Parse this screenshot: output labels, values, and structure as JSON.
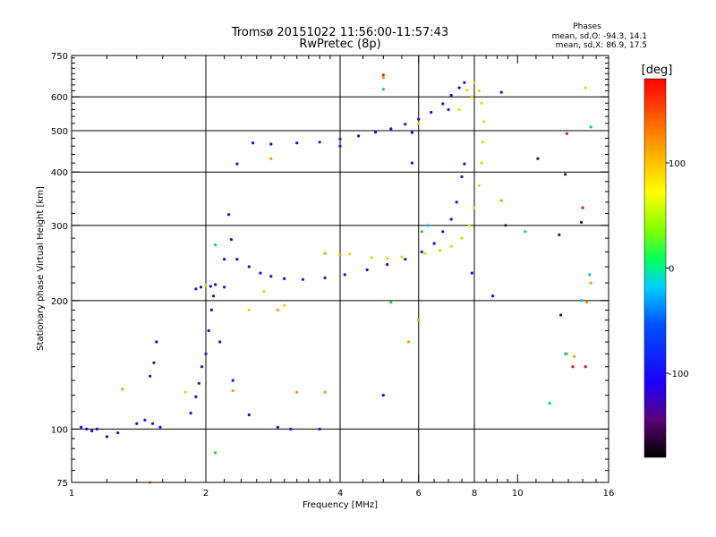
{
  "chart_data": {
    "type": "scatter",
    "title": "Tromsø 20151022 11:56:00-11:57:43",
    "subtitle": "RwPretec (8p)",
    "xlabel": "Frequency [MHz]",
    "ylabel": "Stationary phase Virtual Height [km]",
    "x_scale": "log",
    "y_scale": "log",
    "xlim": [
      1,
      16
    ],
    "ylim": [
      75,
      750
    ],
    "x_ticks": [
      1,
      2,
      4,
      6,
      8,
      10,
      16
    ],
    "y_ticks": [
      75,
      100,
      200,
      300,
      400,
      500,
      600,
      750
    ],
    "grid_x": [
      2,
      4,
      6,
      8
    ],
    "grid_y": [
      100,
      200,
      300,
      400,
      500,
      600
    ],
    "grid": true,
    "phase_stats": {
      "title": "Phases",
      "line_o": "mean, sd,O:  -94.3, 14.1",
      "line_x": "mean, sd,X:  86.9, 17.5"
    },
    "colorbar": {
      "label": "[deg]",
      "range": [
        -180,
        180
      ],
      "ticks": [
        100,
        0,
        -100
      ]
    },
    "series": [
      {
        "color": "#1010e0",
        "points": [
          [
            1.05,
            101
          ],
          [
            1.08,
            100
          ],
          [
            1.11,
            99
          ],
          [
            1.14,
            100
          ],
          [
            1.2,
            96
          ],
          [
            1.27,
            98
          ],
          [
            1.4,
            103
          ],
          [
            1.46,
            105
          ],
          [
            1.52,
            103
          ],
          [
            1.58,
            101
          ],
          [
            1.5,
            133
          ],
          [
            1.53,
            143
          ],
          [
            1.55,
            160
          ],
          [
            1.85,
            109
          ],
          [
            1.9,
            119
          ],
          [
            1.93,
            128
          ],
          [
            1.96,
            140
          ],
          [
            2.0,
            150
          ],
          [
            2.03,
            170
          ],
          [
            2.06,
            190
          ],
          [
            2.08,
            205
          ],
          [
            2.1,
            218
          ],
          [
            2.2,
            215
          ],
          [
            2.15,
            160
          ],
          [
            2.3,
            130
          ],
          [
            2.5,
            108
          ],
          [
            2.9,
            101
          ],
          [
            3.1,
            100
          ],
          [
            3.6,
            100
          ],
          [
            1.9,
            213
          ],
          [
            1.95,
            215
          ],
          [
            2.05,
            216
          ],
          [
            2.2,
            250
          ],
          [
            2.25,
            318
          ],
          [
            2.28,
            278
          ],
          [
            2.35,
            250
          ],
          [
            2.5,
            240
          ],
          [
            2.65,
            232
          ],
          [
            2.8,
            228
          ],
          [
            3.0,
            225
          ],
          [
            3.3,
            224
          ],
          [
            3.7,
            226
          ],
          [
            4.1,
            230
          ],
          [
            4.6,
            236
          ],
          [
            5.1,
            243
          ],
          [
            5.6,
            250
          ],
          [
            6.1,
            260
          ],
          [
            6.5,
            272
          ],
          [
            6.8,
            290
          ],
          [
            7.1,
            310
          ],
          [
            7.3,
            340
          ],
          [
            7.5,
            390
          ],
          [
            7.6,
            418
          ],
          [
            2.35,
            418
          ],
          [
            2.55,
            468
          ],
          [
            2.8,
            465
          ],
          [
            3.2,
            468
          ],
          [
            3.6,
            470
          ],
          [
            4.0,
            478
          ],
          [
            4.4,
            486
          ],
          [
            4.8,
            496
          ],
          [
            5.2,
            505
          ],
          [
            5.6,
            518
          ],
          [
            6.0,
            532
          ],
          [
            6.4,
            552
          ],
          [
            6.8,
            578
          ],
          [
            7.1,
            605
          ],
          [
            7.4,
            630
          ],
          [
            7.6,
            648
          ],
          [
            7.0,
            560
          ],
          [
            5.8,
            495
          ],
          [
            4.0,
            460
          ],
          [
            5.0,
            120
          ],
          [
            5.8,
            420
          ],
          [
            7.9,
            232
          ],
          [
            8.8,
            205
          ],
          [
            9.2,
            615
          ]
        ]
      },
      {
        "color": "#dddd00",
        "points": [
          [
            6.2,
            258
          ],
          [
            6.7,
            262
          ],
          [
            7.1,
            268
          ],
          [
            7.5,
            280
          ],
          [
            7.8,
            300
          ],
          [
            8.0,
            330
          ],
          [
            8.2,
            372
          ],
          [
            8.3,
            420
          ],
          [
            8.35,
            470
          ],
          [
            8.4,
            525
          ],
          [
            8.3,
            580
          ],
          [
            8.2,
            620
          ],
          [
            8.0,
            648
          ],
          [
            7.7,
            622
          ],
          [
            7.4,
            560
          ],
          [
            7.9,
            600
          ],
          [
            4.7,
            252
          ],
          [
            5.1,
            251
          ],
          [
            5.5,
            253
          ],
          [
            4.2,
            257
          ],
          [
            2.0,
            217
          ],
          [
            2.5,
            190
          ],
          [
            3.0,
            195
          ],
          [
            2.7,
            210
          ],
          [
            1.8,
            122
          ],
          [
            14.2,
            630
          ],
          [
            6.0,
            520
          ]
        ]
      },
      {
        "color": "#ff9900",
        "points": [
          [
            3.7,
            258
          ],
          [
            4.0,
            256
          ],
          [
            5.7,
            160
          ],
          [
            6.0,
            180
          ],
          [
            2.8,
            430
          ],
          [
            1.5,
            75
          ],
          [
            2.9,
            190
          ],
          [
            3.2,
            122
          ],
          [
            3.7,
            122
          ],
          [
            12.9,
            150
          ],
          [
            14.6,
            220
          ],
          [
            14.3,
            198
          ],
          [
            9.2,
            343
          ],
          [
            5.0,
            665
          ],
          [
            13.4,
            148
          ],
          [
            2.3,
            123
          ],
          [
            1.3,
            124
          ]
        ]
      },
      {
        "color": "#ee1111",
        "points": [
          [
            5.0,
            675
          ],
          [
            14.0,
            330
          ],
          [
            13.3,
            140
          ],
          [
            12.9,
            492
          ],
          [
            14.2,
            140
          ]
        ]
      },
      {
        "color": "#00c0e0",
        "points": [
          [
            10.4,
            290
          ],
          [
            12.8,
            150
          ],
          [
            13.9,
            200
          ],
          [
            14.6,
            510
          ],
          [
            5.0,
            625
          ],
          [
            11.8,
            115
          ],
          [
            14.5,
            230
          ],
          [
            2.1,
            270
          ],
          [
            6.3,
            300
          ]
        ]
      },
      {
        "color": "#33cc33",
        "points": [
          [
            5.2,
            198
          ],
          [
            2.1,
            88
          ],
          [
            6.1,
            290
          ]
        ]
      },
      {
        "color": "#222233",
        "points": [
          [
            12.4,
            285
          ],
          [
            12.8,
            395
          ],
          [
            13.9,
            305
          ],
          [
            12.5,
            185
          ],
          [
            9.4,
            300
          ],
          [
            11.1,
            430
          ]
        ]
      }
    ]
  }
}
